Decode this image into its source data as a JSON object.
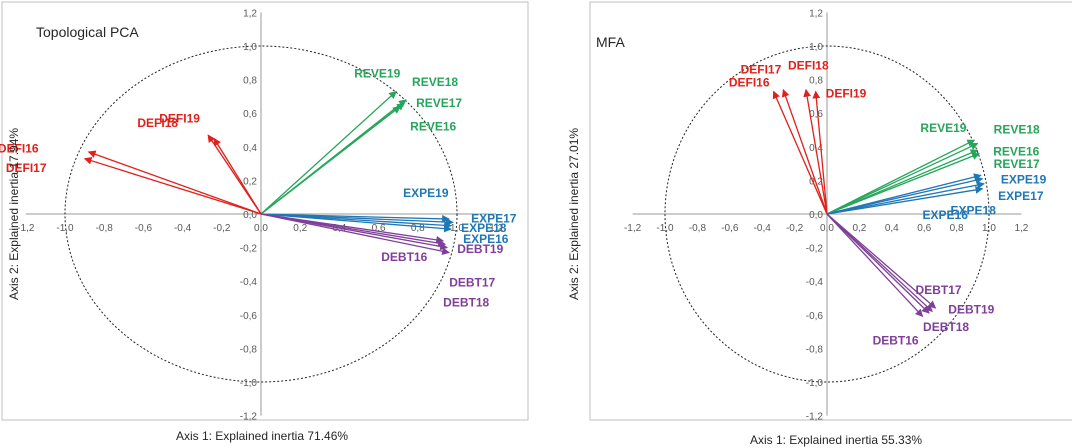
{
  "chart_data": [
    {
      "type": "scatter",
      "title": "Topological PCA",
      "xlabel": "Axis 1: Explained inertia 71.46%",
      "ylabel": "Axis 2: Explained inertia 17.94%",
      "xlim": [
        -1.2,
        1.2
      ],
      "ylim": [
        -1.2,
        1.2
      ],
      "xticks": [
        "-1,2",
        "-1,0",
        "-0,8",
        "-0,6",
        "-0,4",
        "-0,2",
        "0,0",
        "0,2",
        "0,4",
        "0,6",
        "0,8",
        "1,0",
        "1,2"
      ],
      "yticks": [
        "1,2",
        "1,0",
        "0,8",
        "0,6",
        "0,4",
        "0,2",
        "0,0",
        "-0,2",
        "-0,4",
        "-0,6",
        "-0,8",
        "-1,0",
        "-1,2"
      ],
      "unit_circle": true,
      "grid": false,
      "series": [
        {
          "name": "DEFI",
          "color": "#e0201b",
          "vectors": [
            {
              "label": "DEFI16",
              "x": -0.9,
              "y": 0.33
            },
            {
              "label": "DEFI17",
              "x": -0.88,
              "y": 0.37
            },
            {
              "label": "DEFI18",
              "x": -0.27,
              "y": 0.47
            },
            {
              "label": "DEFI19",
              "x": -0.24,
              "y": 0.45
            }
          ]
        },
        {
          "name": "REVE",
          "color": "#26a65b",
          "vectors": [
            {
              "label": "REVE16",
              "x": 0.71,
              "y": 0.64
            },
            {
              "label": "REVE17",
              "x": 0.73,
              "y": 0.66
            },
            {
              "label": "REVE18",
              "x": 0.74,
              "y": 0.68
            },
            {
              "label": "REVE19",
              "x": 0.69,
              "y": 0.73
            }
          ]
        },
        {
          "name": "EXPE",
          "color": "#1f77b4",
          "vectors": [
            {
              "label": "EXPE16",
              "x": 0.97,
              "y": -0.09
            },
            {
              "label": "EXPE17",
              "x": 0.98,
              "y": -0.05
            },
            {
              "label": "EXPE18",
              "x": 0.97,
              "y": -0.07
            },
            {
              "label": "EXPE19",
              "x": 0.96,
              "y": -0.03
            }
          ]
        },
        {
          "name": "DEBT",
          "color": "#7f3f98",
          "vectors": [
            {
              "label": "DEBT16",
              "x": 0.93,
              "y": -0.16
            },
            {
              "label": "DEBT17",
              "x": 0.95,
              "y": -0.2
            },
            {
              "label": "DEBT18",
              "x": 0.96,
              "y": -0.23
            },
            {
              "label": "DEBT19",
              "x": 0.94,
              "y": -0.18
            }
          ]
        }
      ]
    },
    {
      "type": "scatter",
      "title": "MFA",
      "xlabel": "Axis 1: Explained inertia 55.33%",
      "ylabel": "Axis 2: Explained inertia 27.01%",
      "xlim": [
        -1.2,
        1.2
      ],
      "ylim": [
        -1.2,
        1.2
      ],
      "xticks": [
        "-1,2",
        "-1,0",
        "-0,8",
        "-0,6",
        "-0,4",
        "-0,2",
        "0,0",
        "0,2",
        "0,4",
        "0,6",
        "0,8",
        "1,0",
        "1,2"
      ],
      "yticks": [
        "1,2",
        "1,0",
        "0,8",
        "0,6",
        "0,4",
        "0,2",
        "0,0",
        "-0,2",
        "-0,4",
        "-0,6",
        "-0,8",
        "-1,0",
        "-1,2"
      ],
      "unit_circle": true,
      "grid": false,
      "series": [
        {
          "name": "DEFI",
          "color": "#e0201b",
          "vectors": [
            {
              "label": "DEFI16",
              "x": -0.33,
              "y": 0.73
            },
            {
              "label": "DEFI17",
              "x": -0.27,
              "y": 0.74
            },
            {
              "label": "DEFI18",
              "x": -0.13,
              "y": 0.74
            },
            {
              "label": "DEFI19",
              "x": -0.07,
              "y": 0.73
            }
          ]
        },
        {
          "name": "REVE",
          "color": "#26a65b",
          "vectors": [
            {
              "label": "REVE16",
              "x": 0.94,
              "y": 0.36
            },
            {
              "label": "REVE17",
              "x": 0.93,
              "y": 0.38
            },
            {
              "label": "REVE18",
              "x": 0.93,
              "y": 0.42
            },
            {
              "label": "REVE19",
              "x": 0.91,
              "y": 0.44
            }
          ]
        },
        {
          "name": "EXPE",
          "color": "#1f77b4",
          "vectors": [
            {
              "label": "EXPE16",
              "x": 0.96,
              "y": 0.15
            },
            {
              "label": "EXPE17",
              "x": 0.97,
              "y": 0.18
            },
            {
              "label": "EXPE18",
              "x": 0.96,
              "y": 0.21
            },
            {
              "label": "EXPE19",
              "x": 0.95,
              "y": 0.23
            }
          ]
        },
        {
          "name": "DEBT",
          "color": "#7f3f98",
          "vectors": [
            {
              "label": "DEBT16",
              "x": 0.59,
              "y": -0.61
            },
            {
              "label": "DEBT17",
              "x": 0.67,
              "y": -0.56
            },
            {
              "label": "DEBT18",
              "x": 0.63,
              "y": -0.59
            },
            {
              "label": "DEBT19",
              "x": 0.65,
              "y": -0.58
            }
          ]
        }
      ]
    }
  ]
}
